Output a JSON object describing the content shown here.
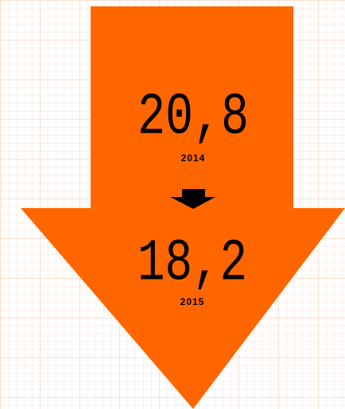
{
  "items": [
    {
      "value": "20,8",
      "year": "2014"
    },
    {
      "value": "18,2",
      "year": "2015"
    }
  ]
}
